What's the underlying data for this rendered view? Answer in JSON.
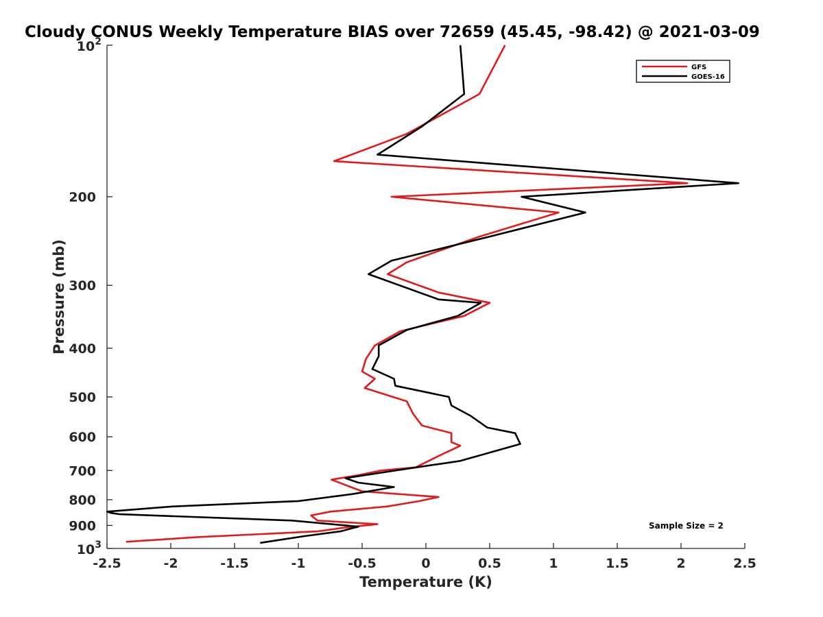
{
  "chart_data": {
    "type": "line",
    "title": "Cloudy CONUS Weekly Temperature BIAS over 72659 (45.45, -98.42) @ 2021-03-09",
    "xlabel": "Temperature (K)",
    "ylabel": "Pressure (mb)",
    "xlim": [
      -2.5,
      2.5
    ],
    "ylim": [
      1000,
      100
    ],
    "y_scale": "log",
    "y_reversed": true,
    "x_ticks": [
      "-2.5",
      "-2",
      "-1.5",
      "-1",
      "-0.5",
      "0",
      "0.5",
      "1",
      "1.5",
      "2",
      "2.5"
    ],
    "y_ticks": [
      {
        "value": 100,
        "base": "10",
        "exp": "2"
      },
      {
        "value": 200,
        "base": "200",
        "exp": ""
      },
      {
        "value": 300,
        "base": "300",
        "exp": ""
      },
      {
        "value": 400,
        "base": "400",
        "exp": ""
      },
      {
        "value": 500,
        "base": "500",
        "exp": ""
      },
      {
        "value": 600,
        "base": "600",
        "exp": ""
      },
      {
        "value": 700,
        "base": "700",
        "exp": ""
      },
      {
        "value": 800,
        "base": "800",
        "exp": ""
      },
      {
        "value": 900,
        "base": "900",
        "exp": ""
      },
      {
        "value": 1000,
        "base": "10",
        "exp": "3"
      }
    ],
    "grid": false,
    "legend": {
      "position": "top-right",
      "entries": [
        "GFS",
        "GOES-16"
      ]
    },
    "annotations": [
      {
        "text": "Sample Size = 2",
        "position": "bottom-right"
      }
    ],
    "series": [
      {
        "name": "GFS",
        "color": "#e31a1c",
        "points": [
          [
            0.62,
            100
          ],
          [
            0.42,
            125
          ],
          [
            -0.15,
            150
          ],
          [
            -0.72,
            170
          ],
          [
            2.05,
            188
          ],
          [
            -0.27,
            200
          ],
          [
            1.04,
            215
          ],
          [
            0.42,
            240
          ],
          [
            -0.15,
            270
          ],
          [
            -0.3,
            285
          ],
          [
            0.1,
            310
          ],
          [
            0.5,
            325
          ],
          [
            0.3,
            345
          ],
          [
            -0.2,
            370
          ],
          [
            -0.4,
            395
          ],
          [
            -0.47,
            420
          ],
          [
            -0.5,
            445
          ],
          [
            -0.4,
            460
          ],
          [
            -0.48,
            480
          ],
          [
            -0.15,
            510
          ],
          [
            -0.1,
            540
          ],
          [
            -0.03,
            570
          ],
          [
            0.2,
            590
          ],
          [
            0.2,
            615
          ],
          [
            0.27,
            625
          ],
          [
            0.1,
            655
          ],
          [
            -0.08,
            690
          ],
          [
            -0.35,
            700
          ],
          [
            -0.53,
            715
          ],
          [
            -0.74,
            730
          ],
          [
            -0.5,
            770
          ],
          [
            0.1,
            790
          ],
          [
            -0.05,
            805
          ],
          [
            -0.3,
            825
          ],
          [
            -0.75,
            845
          ],
          [
            -0.9,
            860
          ],
          [
            -0.85,
            880
          ],
          [
            -0.38,
            895
          ],
          [
            -0.65,
            910
          ],
          [
            -0.85,
            925
          ],
          [
            -1.8,
            950
          ],
          [
            -2.35,
            970
          ]
        ]
      },
      {
        "name": "GOES-16",
        "color": "#000000",
        "points": [
          [
            0.27,
            100
          ],
          [
            0.3,
            125
          ],
          [
            -0.03,
            145
          ],
          [
            -0.38,
            165
          ],
          [
            2.45,
            188
          ],
          [
            0.75,
            200
          ],
          [
            1.25,
            215
          ],
          [
            0.5,
            240
          ],
          [
            -0.27,
            268
          ],
          [
            -0.45,
            285
          ],
          [
            0.1,
            320
          ],
          [
            0.43,
            325
          ],
          [
            0.25,
            345
          ],
          [
            -0.15,
            368
          ],
          [
            -0.37,
            395
          ],
          [
            -0.37,
            415
          ],
          [
            -0.42,
            440
          ],
          [
            -0.25,
            460
          ],
          [
            -0.24,
            475
          ],
          [
            0.18,
            500
          ],
          [
            0.2,
            520
          ],
          [
            0.35,
            545
          ],
          [
            0.48,
            575
          ],
          [
            0.7,
            590
          ],
          [
            0.72,
            605
          ],
          [
            0.74,
            620
          ],
          [
            0.27,
            670
          ],
          [
            -0.24,
            700
          ],
          [
            -0.63,
            725
          ],
          [
            -0.53,
            740
          ],
          [
            -0.25,
            755
          ],
          [
            -0.58,
            780
          ],
          [
            -1.0,
            805
          ],
          [
            -1.98,
            825
          ],
          [
            -2.5,
            845
          ],
          [
            -2.47,
            850
          ],
          [
            -2.4,
            855
          ],
          [
            -1.05,
            880
          ],
          [
            -0.53,
            905
          ],
          [
            -0.67,
            925
          ],
          [
            -0.95,
            945
          ],
          [
            -1.3,
            975
          ]
        ]
      }
    ]
  }
}
